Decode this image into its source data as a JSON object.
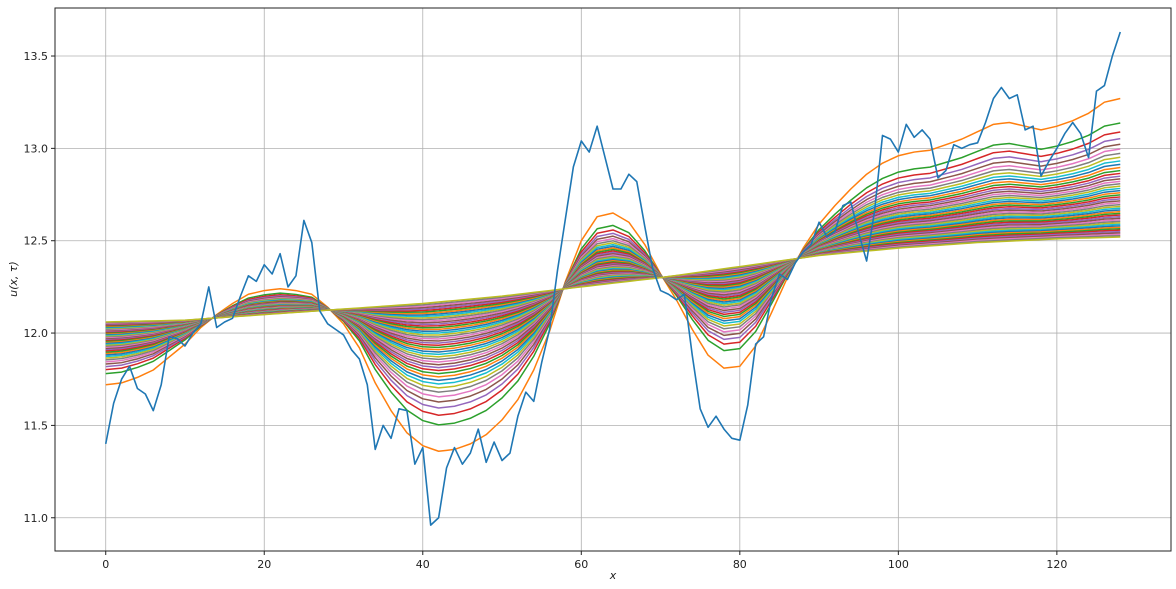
{
  "chart_data": {
    "type": "line",
    "title": "",
    "xlabel": "x",
    "ylabel": "u(x, τ)",
    "xlim": [
      -6.4,
      134.4
    ],
    "ylim": [
      10.82,
      13.76
    ],
    "xticks": [
      0,
      20,
      40,
      60,
      80,
      100,
      120
    ],
    "yticks": [
      11.0,
      11.5,
      12.0,
      12.5,
      13.0,
      13.5
    ],
    "xtick_labels": [
      "0",
      "20",
      "40",
      "60",
      "80",
      "100",
      "120"
    ],
    "ytick_labels": [
      "11.0",
      "11.5",
      "12.0",
      "12.5",
      "13.0",
      "13.5"
    ],
    "grid": true,
    "legend": "none",
    "x_domain": [
      0,
      128
    ],
    "noisy_series": {
      "name": "",
      "color": "#1f77b4",
      "points": [
        [
          0,
          11.4
        ],
        [
          1,
          11.62
        ],
        [
          2,
          11.75
        ],
        [
          3,
          11.82
        ],
        [
          4,
          11.7
        ],
        [
          5,
          11.67
        ],
        [
          6,
          11.58
        ],
        [
          7,
          11.72
        ],
        [
          8,
          11.98
        ],
        [
          9,
          11.97
        ],
        [
          10,
          11.93
        ],
        [
          11,
          12.0
        ],
        [
          12,
          12.05
        ],
        [
          13,
          12.25
        ],
        [
          14,
          12.03
        ],
        [
          15,
          12.06
        ],
        [
          16,
          12.08
        ],
        [
          17,
          12.2
        ],
        [
          18,
          12.31
        ],
        [
          19,
          12.28
        ],
        [
          20,
          12.37
        ],
        [
          21,
          12.32
        ],
        [
          22,
          12.43
        ],
        [
          23,
          12.25
        ],
        [
          24,
          12.31
        ],
        [
          25,
          12.61
        ],
        [
          26,
          12.49
        ],
        [
          27,
          12.12
        ],
        [
          28,
          12.05
        ],
        [
          29,
          12.02
        ],
        [
          30,
          11.99
        ],
        [
          31,
          11.91
        ],
        [
          32,
          11.86
        ],
        [
          33,
          11.72
        ],
        [
          34,
          11.37
        ],
        [
          35,
          11.5
        ],
        [
          36,
          11.43
        ],
        [
          37,
          11.59
        ],
        [
          38,
          11.58
        ],
        [
          39,
          11.29
        ],
        [
          40,
          11.38
        ],
        [
          41,
          10.96
        ],
        [
          42,
          11.0
        ],
        [
          43,
          11.27
        ],
        [
          44,
          11.38
        ],
        [
          45,
          11.29
        ],
        [
          46,
          11.35
        ],
        [
          47,
          11.48
        ],
        [
          48,
          11.3
        ],
        [
          49,
          11.41
        ],
        [
          50,
          11.31
        ],
        [
          51,
          11.35
        ],
        [
          52,
          11.55
        ],
        [
          53,
          11.68
        ],
        [
          54,
          11.63
        ],
        [
          55,
          11.84
        ],
        [
          56,
          12.02
        ],
        [
          57,
          12.34
        ],
        [
          58,
          12.62
        ],
        [
          59,
          12.9
        ],
        [
          60,
          13.04
        ],
        [
          61,
          12.98
        ],
        [
          62,
          13.12
        ],
        [
          63,
          12.95
        ],
        [
          64,
          12.78
        ],
        [
          65,
          12.78
        ],
        [
          66,
          12.86
        ],
        [
          67,
          12.82
        ],
        [
          68,
          12.58
        ],
        [
          69,
          12.35
        ],
        [
          70,
          12.23
        ],
        [
          71,
          12.21
        ],
        [
          72,
          12.18
        ],
        [
          73,
          12.21
        ],
        [
          74,
          11.88
        ],
        [
          75,
          11.59
        ],
        [
          76,
          11.49
        ],
        [
          77,
          11.55
        ],
        [
          78,
          11.48
        ],
        [
          79,
          11.43
        ],
        [
          80,
          11.42
        ],
        [
          81,
          11.61
        ],
        [
          82,
          11.94
        ],
        [
          83,
          11.98
        ],
        [
          84,
          12.19
        ],
        [
          85,
          12.32
        ],
        [
          86,
          12.29
        ],
        [
          87,
          12.38
        ],
        [
          88,
          12.44
        ],
        [
          89,
          12.48
        ],
        [
          90,
          12.6
        ],
        [
          91,
          12.52
        ],
        [
          92,
          12.55
        ],
        [
          93,
          12.69
        ],
        [
          94,
          12.71
        ],
        [
          95,
          12.54
        ],
        [
          96,
          12.39
        ],
        [
          97,
          12.66
        ],
        [
          98,
          13.07
        ],
        [
          99,
          13.05
        ],
        [
          100,
          12.98
        ],
        [
          101,
          13.13
        ],
        [
          102,
          13.06
        ],
        [
          103,
          13.1
        ],
        [
          104,
          13.05
        ],
        [
          105,
          12.84
        ],
        [
          106,
          12.88
        ],
        [
          107,
          13.02
        ],
        [
          108,
          13.0
        ],
        [
          109,
          13.02
        ],
        [
          110,
          13.03
        ],
        [
          111,
          13.14
        ],
        [
          112,
          13.27
        ],
        [
          113,
          13.33
        ],
        [
          114,
          13.27
        ],
        [
          115,
          13.29
        ],
        [
          116,
          13.1
        ],
        [
          117,
          13.12
        ],
        [
          118,
          12.85
        ],
        [
          119,
          12.93
        ],
        [
          120,
          13.0
        ],
        [
          121,
          13.08
        ],
        [
          122,
          13.14
        ],
        [
          123,
          13.08
        ],
        [
          124,
          12.95
        ],
        [
          125,
          13.31
        ],
        [
          126,
          13.34
        ],
        [
          127,
          13.5
        ],
        [
          128,
          13.63
        ]
      ]
    },
    "smoothed_family": {
      "count": 48,
      "colors": [
        "#ff7f0e",
        "#2ca02c",
        "#d62728",
        "#9467bd",
        "#8c564b",
        "#e377c2",
        "#7f7f7f",
        "#bcbd22",
        "#17becf",
        "#1f77b4"
      ],
      "final_curve": {
        "points": [
          [
            0,
            12.06
          ],
          [
            10,
            12.07
          ],
          [
            20,
            12.1
          ],
          [
            30,
            12.13
          ],
          [
            40,
            12.16
          ],
          [
            50,
            12.2
          ],
          [
            60,
            12.25
          ],
          [
            70,
            12.3
          ],
          [
            80,
            12.36
          ],
          [
            90,
            12.42
          ],
          [
            100,
            12.46
          ],
          [
            110,
            12.49
          ],
          [
            120,
            12.51
          ],
          [
            128,
            12.52
          ]
        ]
      },
      "first_curve": {
        "points": [
          [
            0,
            11.72
          ],
          [
            2,
            11.73
          ],
          [
            4,
            11.76
          ],
          [
            6,
            11.8
          ],
          [
            8,
            11.87
          ],
          [
            10,
            11.94
          ],
          [
            12,
            12.03
          ],
          [
            14,
            12.1
          ],
          [
            16,
            12.16
          ],
          [
            18,
            12.21
          ],
          [
            20,
            12.23
          ],
          [
            22,
            12.24
          ],
          [
            24,
            12.23
          ],
          [
            26,
            12.21
          ],
          [
            28,
            12.14
          ],
          [
            30,
            12.05
          ],
          [
            32,
            11.92
          ],
          [
            34,
            11.73
          ],
          [
            36,
            11.58
          ],
          [
            38,
            11.46
          ],
          [
            40,
            11.39
          ],
          [
            42,
            11.36
          ],
          [
            44,
            11.37
          ],
          [
            46,
            11.4
          ],
          [
            48,
            11.45
          ],
          [
            50,
            11.53
          ],
          [
            52,
            11.64
          ],
          [
            54,
            11.8
          ],
          [
            56,
            12.01
          ],
          [
            58,
            12.28
          ],
          [
            60,
            12.5
          ],
          [
            62,
            12.63
          ],
          [
            64,
            12.65
          ],
          [
            66,
            12.6
          ],
          [
            68,
            12.48
          ],
          [
            70,
            12.32
          ],
          [
            72,
            12.18
          ],
          [
            74,
            12.02
          ],
          [
            76,
            11.88
          ],
          [
            78,
            11.81
          ],
          [
            80,
            11.82
          ],
          [
            82,
            11.93
          ],
          [
            84,
            12.11
          ],
          [
            86,
            12.3
          ],
          [
            88,
            12.46
          ],
          [
            90,
            12.59
          ],
          [
            92,
            12.69
          ],
          [
            94,
            12.78
          ],
          [
            96,
            12.86
          ],
          [
            98,
            12.92
          ],
          [
            100,
            12.96
          ],
          [
            102,
            12.98
          ],
          [
            104,
            12.99
          ],
          [
            106,
            13.02
          ],
          [
            108,
            13.05
          ],
          [
            110,
            13.09
          ],
          [
            112,
            13.13
          ],
          [
            114,
            13.14
          ],
          [
            116,
            13.12
          ],
          [
            118,
            13.1
          ],
          [
            120,
            13.12
          ],
          [
            122,
            13.15
          ],
          [
            124,
            13.19
          ],
          [
            126,
            13.25
          ],
          [
            128,
            13.27
          ]
        ]
      }
    }
  }
}
